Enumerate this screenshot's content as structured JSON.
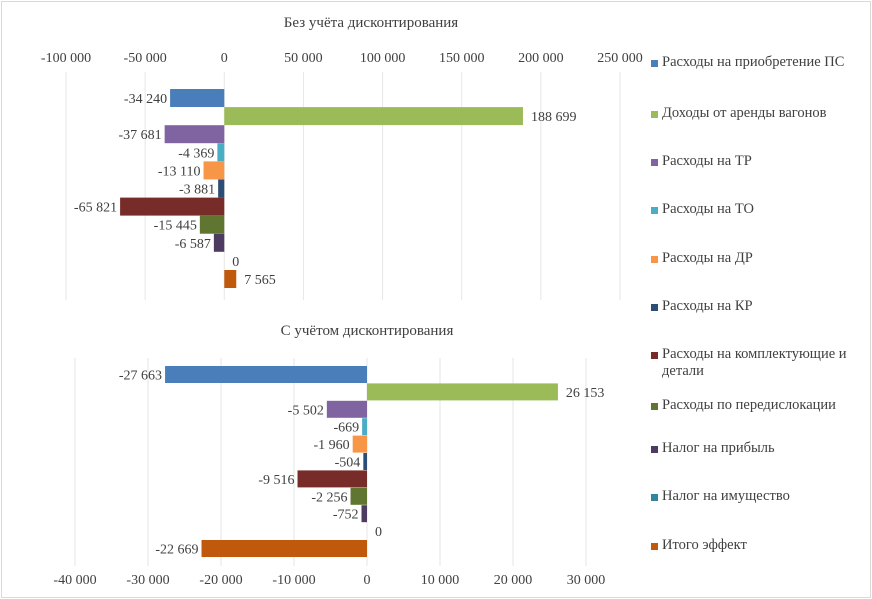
{
  "legend": [
    {
      "label": "Расходы на приобретение ПС",
      "color": "#4a7ebb"
    },
    {
      "label": "Доходы от аренды вагонов",
      "color": "#9bbb59"
    },
    {
      "label": "Расходы на ТР",
      "color": "#8064a2"
    },
    {
      "label": "Расходы на ТО",
      "color": "#4bacc6"
    },
    {
      "label": "Расходы на ДР",
      "color": "#f79646"
    },
    {
      "label": "Расходы на КР",
      "color": "#2c4d75"
    },
    {
      "label": "Расходы на комплектующие и детали",
      "color": "#772c2a"
    },
    {
      "label": "Расходы по передислокации",
      "color": "#5f7530"
    },
    {
      "label": "Налог на прибыль",
      "color": "#4d3b62"
    },
    {
      "label": "Налог на имущество",
      "color": "#31859c"
    },
    {
      "label": "Итого эффект",
      "color": "#c0590c"
    }
  ],
  "chart_data": [
    {
      "type": "bar",
      "orientation": "horizontal",
      "title": "Без учёта дисконтирования",
      "xlabel": "",
      "ylabel": "",
      "xlim": [
        -100000,
        250000
      ],
      "x_ticks": [
        -100000,
        -50000,
        0,
        50000,
        100000,
        150000,
        200000,
        250000
      ],
      "x_tick_labels": [
        "-100 000",
        "-50 000",
        "0",
        "50 000",
        "100 000",
        "150 000",
        "200 000",
        "250 000"
      ],
      "axis_position": "top",
      "grid": true,
      "legend_position": "right",
      "categories": [
        "Расходы на приобретение ПС",
        "Доходы от аренды вагонов",
        "Расходы на ТР",
        "Расходы на ТО",
        "Расходы на ДР",
        "Расходы на КР",
        "Расходы на комплектующие и детали",
        "Расходы по передислокации",
        "Налог на прибыль",
        "Налог на имущество",
        "Итого эффект"
      ],
      "values": [
        -34240,
        188699,
        -37681,
        -4369,
        -13110,
        -3881,
        -65821,
        -15445,
        -6587,
        0,
        7565
      ],
      "data_labels": [
        "-34 240",
        "188 699",
        "-37 681",
        "-4 369",
        "-13 110",
        "-3 881",
        "-65 821",
        "-15 445",
        "-6 587",
        "0",
        "7 565"
      ]
    },
    {
      "type": "bar",
      "orientation": "horizontal",
      "title": "С учётом дисконтирования",
      "xlabel": "",
      "ylabel": "",
      "xlim": [
        -40000,
        30000
      ],
      "x_ticks": [
        -40000,
        -30000,
        -20000,
        -10000,
        0,
        10000,
        20000,
        30000
      ],
      "x_tick_labels": [
        "-40 000",
        "-30 000",
        "-20 000",
        "-10 000",
        "0",
        "10 000",
        "20 000",
        "30 000"
      ],
      "axis_position": "bottom",
      "grid": true,
      "legend_position": "right",
      "categories": [
        "Расходы на приобретение ПС",
        "Доходы от аренды вагонов",
        "Расходы на ТР",
        "Расходы на ТО",
        "Расходы на ДР",
        "Расходы на КР",
        "Расходы на комплектующие и детали",
        "Расходы по передислокации",
        "Налог на прибыль",
        "Налог на имущество",
        "Итого эффект"
      ],
      "values": [
        -27663,
        26153,
        -5502,
        -669,
        -1960,
        -504,
        -9516,
        -2256,
        -752,
        0,
        -22669
      ],
      "data_labels": [
        "-27 663",
        "26 153",
        "-5 502",
        "-669",
        "-1 960",
        "-504",
        "-9 516",
        "-2 256",
        "-752",
        "0",
        "-22 669"
      ]
    }
  ]
}
